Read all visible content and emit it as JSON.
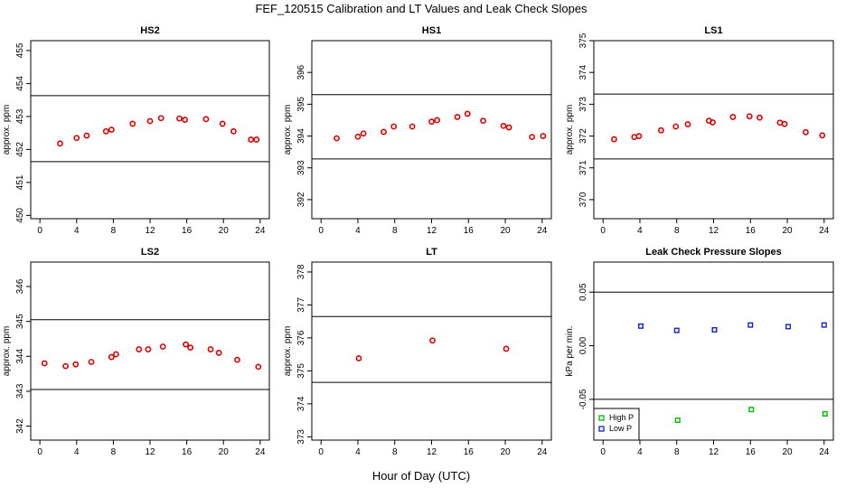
{
  "figure": {
    "title": "FEF_120515  Calibration and LT Values and Leak Check Slopes",
    "xlabel": "Hour of Day (UTC)"
  },
  "chart_data": [
    {
      "type": "scatter",
      "title": "HS2",
      "xlabel": "",
      "ylabel": "approx. ppm",
      "xlim": [
        -1,
        25
      ],
      "ylim": [
        449.9,
        455.3
      ],
      "xticks": [
        0,
        4,
        8,
        12,
        16,
        20,
        24
      ],
      "yticks": [
        450,
        451,
        452,
        453,
        454,
        455
      ],
      "hlines": [
        451.63,
        453.63
      ],
      "marker_color": "#dd0000",
      "marker": "circle",
      "series": [
        {
          "x": [
            2.2,
            4.0,
            5.1,
            7.2,
            7.8,
            10.1,
            12.0,
            13.2,
            15.2,
            15.8,
            18.1,
            19.9,
            21.1,
            23.0,
            23.6
          ],
          "y": [
            452.18,
            452.35,
            452.42,
            452.55,
            452.6,
            452.78,
            452.86,
            452.95,
            452.94,
            452.9,
            452.92,
            452.78,
            452.55,
            452.3,
            452.3
          ]
        }
      ]
    },
    {
      "type": "scatter",
      "title": "HS1",
      "xlabel": "",
      "ylabel": "approx. ppm",
      "xlim": [
        -1,
        25
      ],
      "ylim": [
        391.4,
        397.0
      ],
      "xticks": [
        0,
        4,
        8,
        12,
        16,
        20,
        24
      ],
      "yticks": [
        392,
        393,
        394,
        395,
        396
      ],
      "hlines": [
        393.28,
        395.3
      ],
      "marker_color": "#dd0000",
      "marker": "circle",
      "series": [
        {
          "x": [
            1.7,
            4.0,
            4.6,
            6.8,
            7.9,
            9.9,
            12.0,
            12.6,
            14.8,
            15.9,
            17.6,
            19.8,
            20.4,
            22.9,
            24.1
          ],
          "y": [
            393.93,
            393.98,
            394.08,
            394.13,
            394.3,
            394.3,
            394.45,
            394.5,
            394.6,
            394.7,
            394.48,
            394.32,
            394.27,
            393.97,
            394.0
          ]
        }
      ]
    },
    {
      "type": "scatter",
      "title": "LS1",
      "xlabel": "",
      "ylabel": "approx. ppm",
      "xlim": [
        -1,
        25
      ],
      "ylim": [
        369.4,
        375.0
      ],
      "xticks": [
        0,
        4,
        8,
        12,
        16,
        20,
        24
      ],
      "yticks": [
        370,
        371,
        372,
        373,
        374,
        375
      ],
      "hlines": [
        371.28,
        373.32
      ],
      "marker_color": "#dd0000",
      "marker": "circle",
      "series": [
        {
          "x": [
            1.2,
            3.4,
            3.9,
            6.3,
            7.9,
            9.2,
            11.5,
            11.9,
            14.1,
            15.9,
            17.0,
            19.2,
            19.7,
            22.0,
            23.8
          ],
          "y": [
            371.9,
            371.97,
            372.0,
            372.18,
            372.3,
            372.37,
            372.48,
            372.43,
            372.6,
            372.62,
            372.58,
            372.42,
            372.38,
            372.12,
            372.02
          ]
        }
      ]
    },
    {
      "type": "scatter",
      "title": "LS2",
      "xlabel": "",
      "ylabel": "approx. ppm",
      "xlim": [
        -1,
        25
      ],
      "ylim": [
        341.6,
        346.7
      ],
      "xticks": [
        0,
        4,
        8,
        12,
        16,
        20,
        24
      ],
      "yticks": [
        342,
        343,
        344,
        345,
        346
      ],
      "hlines": [
        343.05,
        345.05
      ],
      "marker_color": "#dd0000",
      "marker": "circle",
      "series": [
        {
          "x": [
            0.5,
            2.8,
            3.9,
            5.6,
            7.8,
            8.3,
            10.8,
            11.8,
            13.4,
            15.9,
            16.4,
            18.6,
            19.5,
            21.5,
            23.8
          ],
          "y": [
            343.8,
            343.72,
            343.77,
            343.84,
            343.98,
            344.06,
            344.2,
            344.2,
            344.28,
            344.34,
            344.25,
            344.2,
            344.1,
            343.9,
            343.7
          ]
        }
      ]
    },
    {
      "type": "scatter",
      "title": "LT",
      "xlabel": "",
      "ylabel": "approx. ppm",
      "xlim": [
        -1,
        25
      ],
      "ylim": [
        372.9,
        378.3
      ],
      "xticks": [
        0,
        4,
        8,
        12,
        16,
        20,
        24
      ],
      "yticks": [
        373,
        374,
        375,
        376,
        377,
        378
      ],
      "hlines": [
        374.65,
        376.65
      ],
      "marker_color": "#dd0000",
      "marker": "circle",
      "series": [
        {
          "x": [
            4.1,
            12.1,
            20.1
          ],
          "y": [
            375.38,
            375.92,
            375.67
          ]
        }
      ]
    },
    {
      "type": "scatter",
      "title": "Leak Check Pressure Slopes",
      "xlabel": "",
      "ylabel": "kPa per min.",
      "xlim": [
        -1,
        25
      ],
      "ylim": [
        -0.088,
        0.078
      ],
      "xticks": [
        0,
        4,
        8,
        12,
        16,
        20,
        24
      ],
      "yticks": [
        -0.05,
        0.0,
        0.05
      ],
      "ytick_labels": [
        "-0.05",
        "0.00",
        "0.05"
      ],
      "hlines": [
        -0.05,
        0.05
      ],
      "legend": "bottom-left",
      "series": [
        {
          "name": "High P",
          "color": "#00bb00",
          "marker": "square",
          "x": [
            8.1,
            16.1,
            24.1
          ],
          "y": [
            -0.0695,
            -0.0595,
            -0.0635
          ]
        },
        {
          "name": "Low P",
          "color": "#1122cc",
          "marker": "square",
          "x": [
            4.1,
            8.0,
            12.1,
            16.0,
            20.1,
            24.0
          ],
          "y": [
            0.0183,
            0.0143,
            0.0148,
            0.0193,
            0.0178,
            0.0193
          ]
        }
      ]
    }
  ]
}
